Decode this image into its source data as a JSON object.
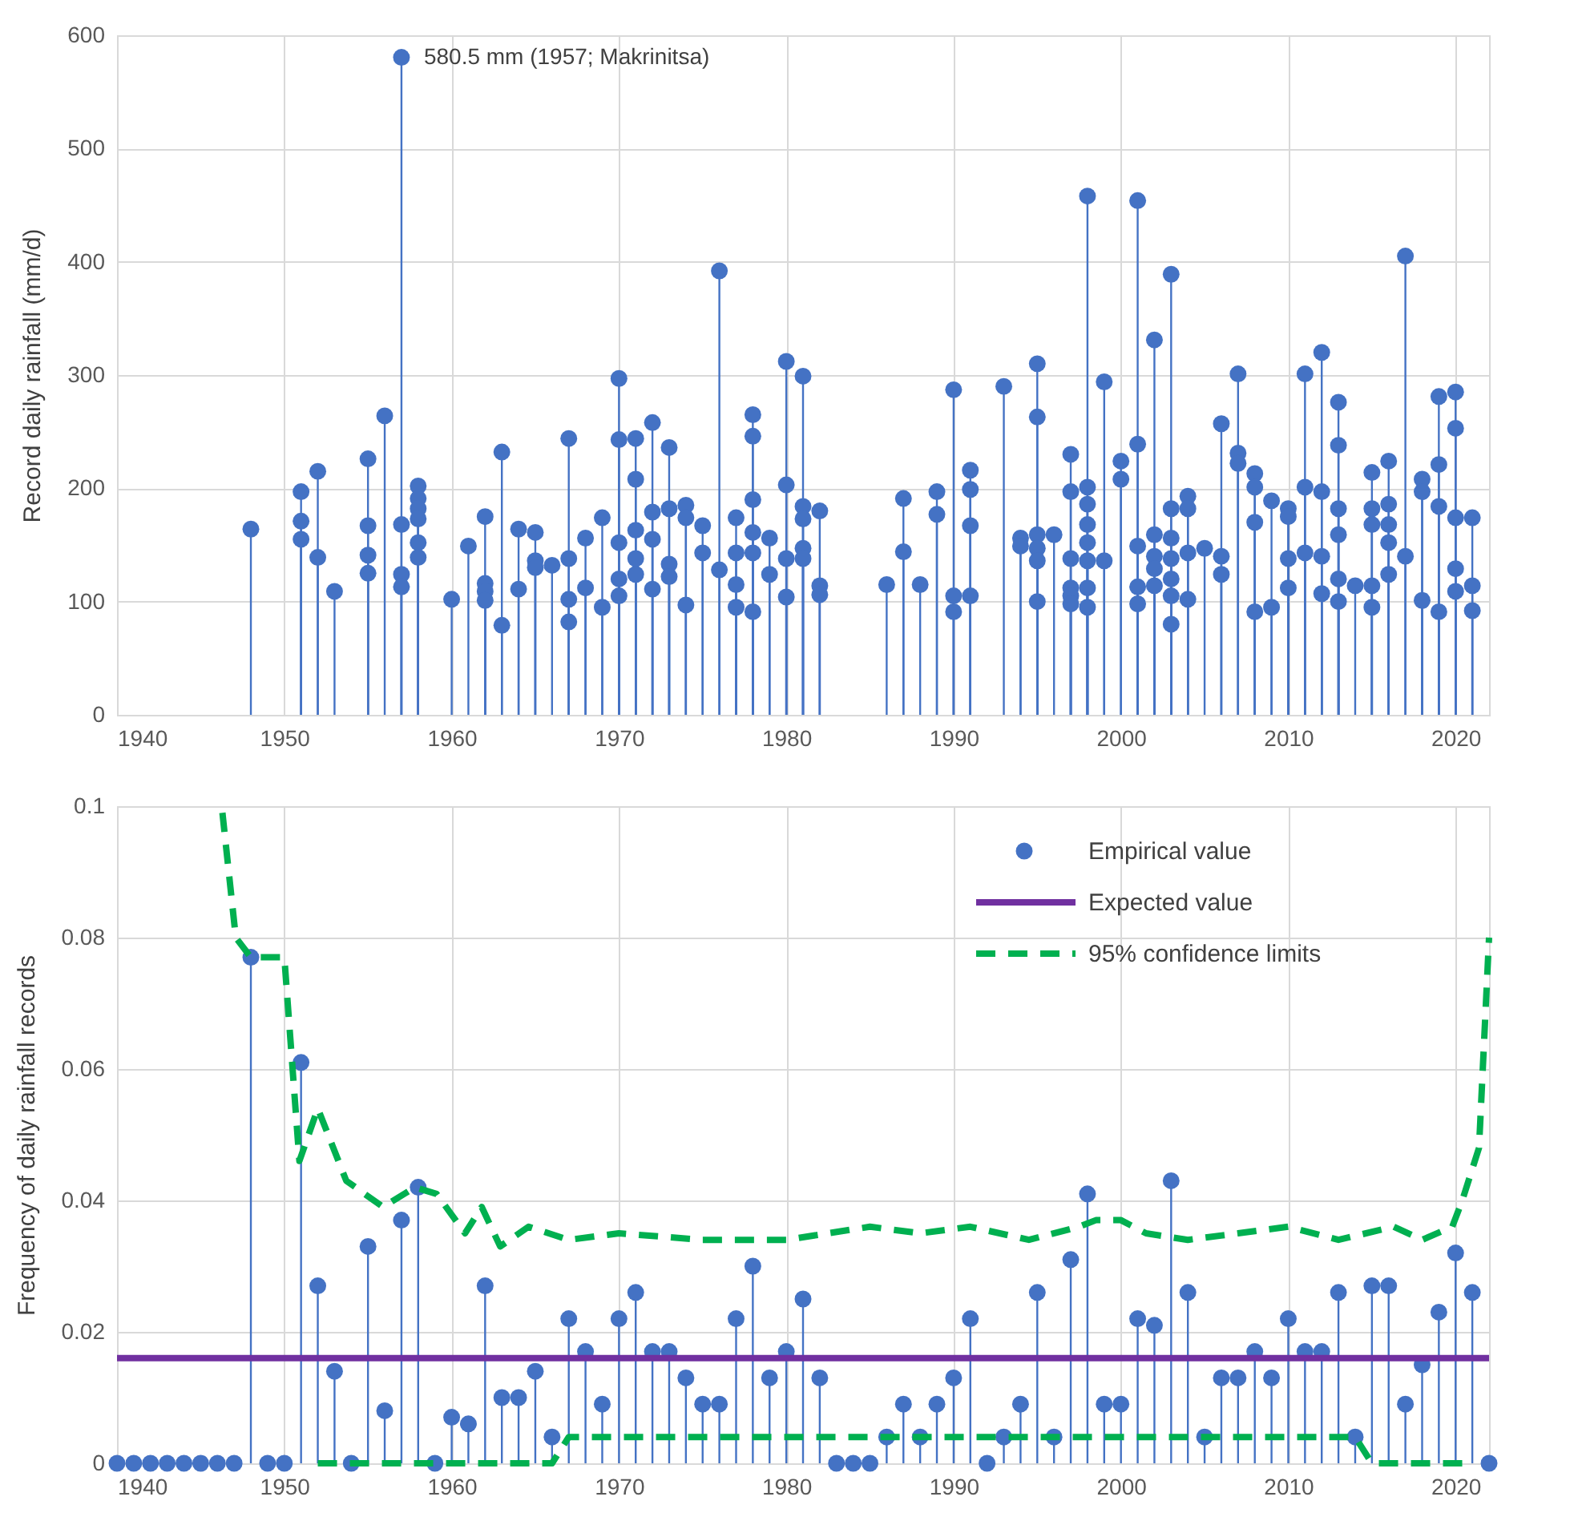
{
  "chart_data": [
    {
      "type": "lollipop",
      "ylabel": "Record daily rainfall (mm/d)",
      "color": "#4472c4",
      "marker": "circle",
      "grid": true,
      "xlim": [
        1940,
        2022
      ],
      "xticks": [
        1940,
        1950,
        1960,
        1970,
        1980,
        1990,
        2000,
        2010,
        2020
      ],
      "ylim": [
        0,
        600
      ],
      "yticks": [
        0,
        100,
        200,
        300,
        400,
        500,
        600
      ],
      "annotations": [
        {
          "text": "580.5 mm (1957; Makrinitsa)",
          "x": 1957,
          "y": 580.5
        }
      ],
      "x": [
        1948,
        1951,
        1951,
        1951,
        1952,
        1952,
        1953,
        1955,
        1955,
        1955,
        1955,
        1956,
        1957,
        1957,
        1957,
        1957,
        1958,
        1958,
        1958,
        1958,
        1958,
        1958,
        1960,
        1961,
        1962,
        1962,
        1962,
        1962,
        1963,
        1963,
        1964,
        1964,
        1965,
        1965,
        1965,
        1966,
        1967,
        1967,
        1967,
        1967,
        1968,
        1968,
        1969,
        1969,
        1970,
        1970,
        1970,
        1970,
        1970,
        1971,
        1971,
        1971,
        1971,
        1971,
        1972,
        1972,
        1972,
        1972,
        1973,
        1973,
        1973,
        1973,
        1974,
        1974,
        1974,
        1975,
        1975,
        1976,
        1976,
        1977,
        1977,
        1977,
        1977,
        1978,
        1978,
        1978,
        1978,
        1978,
        1978,
        1979,
        1979,
        1980,
        1980,
        1980,
        1980,
        1981,
        1981,
        1981,
        1981,
        1981,
        1982,
        1982,
        1982,
        1986,
        1987,
        1987,
        1988,
        1989,
        1989,
        1990,
        1990,
        1990,
        1991,
        1991,
        1991,
        1991,
        1993,
        1994,
        1994,
        1995,
        1995,
        1995,
        1995,
        1995,
        1995,
        1996,
        1997,
        1997,
        1997,
        1997,
        1997,
        1997,
        1998,
        1998,
        1998,
        1998,
        1998,
        1998,
        1998,
        1998,
        1999,
        1999,
        2000,
        2000,
        2001,
        2001,
        2001,
        2001,
        2001,
        2002,
        2002,
        2002,
        2002,
        2002,
        2003,
        2003,
        2003,
        2003,
        2003,
        2003,
        2003,
        2004,
        2004,
        2004,
        2004,
        2005,
        2006,
        2006,
        2006,
        2007,
        2007,
        2007,
        2008,
        2008,
        2008,
        2008,
        2009,
        2009,
        2010,
        2010,
        2010,
        2010,
        2011,
        2011,
        2011,
        2012,
        2012,
        2012,
        2012,
        2013,
        2013,
        2013,
        2013,
        2013,
        2013,
        2014,
        2015,
        2015,
        2015,
        2015,
        2015,
        2016,
        2016,
        2016,
        2016,
        2016,
        2017,
        2017,
        2018,
        2018,
        2018,
        2019,
        2019,
        2019,
        2019,
        2020,
        2020,
        2020,
        2020,
        2020,
        2021,
        2021,
        2021
      ],
      "values": [
        164,
        197,
        171,
        155,
        215,
        139,
        109,
        226,
        167,
        141,
        125,
        264,
        580.5,
        168,
        124,
        113,
        202,
        191,
        182,
        173,
        152,
        139,
        102,
        149,
        175,
        116,
        109,
        101,
        232,
        79,
        164,
        111,
        161,
        136,
        130,
        132,
        244,
        138,
        102,
        82,
        156,
        112,
        174,
        95,
        297,
        243,
        152,
        120,
        105,
        244,
        208,
        163,
        138,
        124,
        258,
        179,
        155,
        111,
        236,
        182,
        133,
        122,
        185,
        174,
        97,
        167,
        143,
        392,
        128,
        174,
        143,
        115,
        95,
        265,
        246,
        190,
        161,
        143,
        91,
        156,
        124,
        312,
        203,
        138,
        104,
        299,
        184,
        173,
        147,
        138,
        180,
        114,
        106,
        115,
        191,
        144,
        115,
        197,
        177,
        287,
        105,
        91,
        216,
        199,
        167,
        105,
        290,
        156,
        149,
        310,
        263,
        159,
        147,
        136,
        100,
        159,
        230,
        197,
        138,
        112,
        105,
        98,
        458,
        201,
        186,
        168,
        152,
        136,
        112,
        95,
        294,
        136,
        224,
        208,
        454,
        239,
        149,
        113,
        98,
        331,
        159,
        140,
        129,
        114,
        389,
        182,
        156,
        138,
        120,
        105,
        80,
        193,
        182,
        143,
        102,
        147,
        257,
        140,
        124,
        301,
        231,
        222,
        213,
        201,
        170,
        91,
        189,
        95,
        182,
        175,
        138,
        112,
        301,
        201,
        143,
        320,
        197,
        140,
        107,
        276,
        238,
        182,
        159,
        120,
        100,
        114,
        214,
        182,
        168,
        114,
        95,
        224,
        186,
        168,
        152,
        124,
        405,
        140,
        208,
        197,
        101,
        281,
        221,
        184,
        91,
        285,
        253,
        174,
        129,
        109,
        174,
        114,
        92
      ]
    },
    {
      "type": "lollipop",
      "ylabel": "Frequency of daily rainfall records",
      "grid": true,
      "legend": "top right",
      "xlim": [
        1940,
        2022
      ],
      "xticks": [
        1940,
        1950,
        1960,
        1970,
        1980,
        1990,
        2000,
        2010,
        2020
      ],
      "ylim": [
        0,
        0.1
      ],
      "yticks": [
        0,
        0.02,
        0.04,
        0.06,
        0.08,
        0.1
      ],
      "series": [
        {
          "name": "Empirical value",
          "marker": "circle",
          "color": "#4472c4",
          "x": [
            1940,
            1941,
            1942,
            1943,
            1944,
            1945,
            1946,
            1947,
            1948,
            1949,
            1950,
            1951,
            1952,
            1953,
            1954,
            1955,
            1956,
            1957,
            1958,
            1959,
            1960,
            1961,
            1962,
            1963,
            1964,
            1965,
            1966,
            1967,
            1968,
            1969,
            1970,
            1971,
            1972,
            1973,
            1974,
            1975,
            1976,
            1977,
            1978,
            1979,
            1980,
            1981,
            1982,
            1983,
            1984,
            1985,
            1986,
            1987,
            1988,
            1989,
            1990,
            1991,
            1992,
            1993,
            1994,
            1995,
            1996,
            1997,
            1998,
            1999,
            2000,
            2001,
            2002,
            2003,
            2004,
            2005,
            2006,
            2007,
            2008,
            2009,
            2010,
            2011,
            2012,
            2013,
            2014,
            2015,
            2016,
            2017,
            2018,
            2019,
            2020,
            2021,
            2022
          ],
          "values": [
            0,
            0,
            0,
            0,
            0,
            0,
            0,
            0,
            0.077,
            0,
            0,
            0.061,
            0.027,
            0.014,
            0,
            0.033,
            0.008,
            0.037,
            0.042,
            0,
            0.007,
            0.006,
            0.027,
            0.01,
            0.01,
            0.014,
            0.004,
            0.022,
            0.017,
            0.009,
            0.022,
            0.026,
            0.017,
            0.017,
            0.013,
            0.009,
            0.009,
            0.022,
            0.03,
            0.013,
            0.017,
            0.025,
            0.013,
            0,
            0,
            0,
            0.004,
            0.009,
            0.004,
            0.009,
            0.013,
            0.022,
            0,
            0.004,
            0.009,
            0.026,
            0.004,
            0.031,
            0.041,
            0.009,
            0.009,
            0.022,
            0.021,
            0.043,
            0.026,
            0.004,
            0.013,
            0.013,
            0.017,
            0.013,
            0.022,
            0.017,
            0.017,
            0.026,
            0.004,
            0.027,
            0.027,
            0.009,
            0.015,
            0.023,
            0.032,
            0.026,
            0
          ]
        },
        {
          "name": "Expected value",
          "type": "line",
          "color": "#7030a0",
          "x": [
            1940,
            2022
          ],
          "values": [
            0.016,
            0.016
          ]
        },
        {
          "name": "95% confidence limits",
          "type": "line",
          "line_style": "dashed",
          "color": "#00b050",
          "x": [
            1946.3,
            1947.1,
            1948,
            1950,
            1950.9,
            1952,
            1953.7,
            1955.9,
            1957.8,
            1959.1,
            1960.8,
            1961.8,
            1962.9,
            1964.6,
            1967,
            1970,
            1975,
            1980,
            1985,
            1988,
            1991,
            1994.5,
            1997.5,
            1998.5,
            2000,
            2001.5,
            2004,
            2007,
            2010,
            2013,
            2016.3,
            2018,
            2019.8,
            2020.4,
            2021.4,
            2022
          ],
          "values": [
            0.099,
            0.08,
            0.077,
            0.077,
            0.046,
            0.054,
            0.043,
            0.039,
            0.042,
            0.041,
            0.035,
            0.039,
            0.033,
            0.036,
            0.034,
            0.035,
            0.034,
            0.034,
            0.036,
            0.035,
            0.036,
            0.034,
            0.036,
            0.037,
            0.037,
            0.035,
            0.034,
            0.035,
            0.036,
            0.034,
            0.036,
            0.034,
            0.036,
            0.04,
            0.048,
            0.08
          ]
        },
        {
          "type": "line",
          "line_style": "dashed",
          "color": "#00b050",
          "x": [
            1952,
            1966,
            1967,
            2014,
            2015,
            2021
          ],
          "values": [
            0,
            0,
            0.004,
            0.004,
            0,
            0
          ]
        }
      ]
    }
  ]
}
